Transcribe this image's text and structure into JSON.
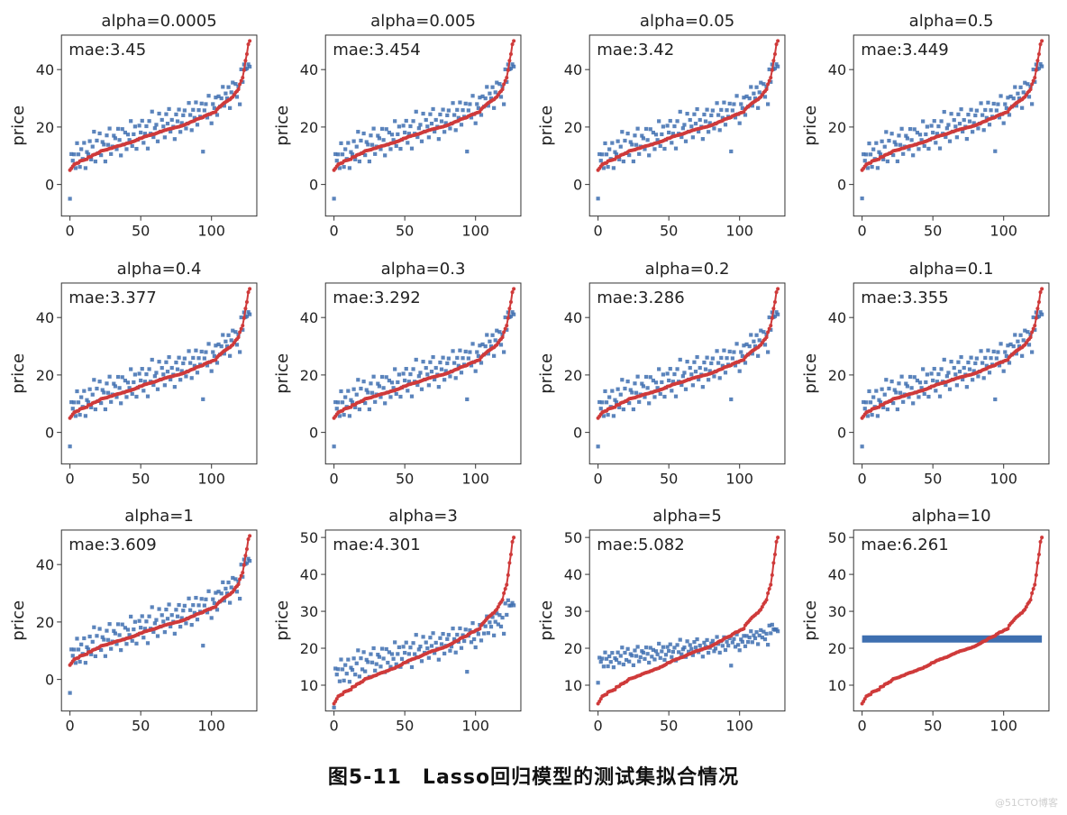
{
  "caption": "图5-11　Lasso回归模型的测试集拟合情况",
  "watermark": "@51CTO博客",
  "layout": {
    "rows": 3,
    "cols": 4,
    "background_color": "#ffffff",
    "spine_color": "#333333",
    "tick_color": "#333333",
    "tick_fontsize": 16,
    "title_fontsize": 18,
    "label_fontsize": 18,
    "annotation_fontsize": 18,
    "scatter_color": "#3e6fb0",
    "scatter_alpha": 0.85,
    "scatter_size": 4.2,
    "line_color": "#cf3a3a",
    "line_width": 2.0,
    "line_marker_size": 2.0,
    "xlim": [
      -6,
      132
    ],
    "xticks": [
      0,
      50,
      100
    ],
    "y_default_lim": [
      -11,
      52
    ],
    "y_default_ticks": [
      0,
      20,
      40
    ],
    "y_alt_lim": [
      3,
      52
    ],
    "y_alt_ticks": [
      10,
      20,
      30,
      40,
      50
    ]
  },
  "sorted_truth": [
    5.0,
    5.6,
    6.3,
    7.0,
    7.2,
    7.4,
    7.5,
    8.1,
    8.3,
    8.4,
    8.5,
    8.7,
    8.8,
    9.5,
    9.6,
    9.7,
    10.2,
    10.4,
    10.5,
    10.8,
    10.9,
    11.3,
    11.7,
    11.8,
    11.9,
    12.0,
    12.1,
    12.3,
    12.5,
    12.6,
    12.7,
    13.0,
    13.1,
    13.3,
    13.4,
    13.5,
    13.6,
    13.8,
    13.9,
    14.1,
    14.3,
    14.4,
    14.5,
    14.6,
    14.9,
    15.0,
    15.2,
    15.4,
    15.6,
    16.0,
    16.1,
    16.2,
    16.5,
    16.7,
    16.8,
    17.0,
    17.1,
    17.2,
    17.4,
    17.5,
    17.6,
    17.8,
    18.0,
    18.2,
    18.4,
    18.5,
    18.7,
    18.9,
    19.0,
    19.2,
    19.3,
    19.4,
    19.5,
    19.6,
    19.8,
    19.9,
    20.0,
    20.1,
    20.3,
    20.4,
    20.6,
    20.8,
    21.0,
    21.2,
    21.4,
    21.7,
    21.9,
    22.0,
    22.2,
    22.6,
    22.8,
    22.9,
    23.1,
    23.2,
    23.4,
    23.8,
    24.0,
    24.3,
    24.4,
    24.5,
    24.8,
    25.0,
    25.1,
    25.3,
    26.2,
    26.7,
    27.1,
    27.5,
    28.0,
    28.4,
    28.7,
    29.0,
    29.4,
    29.6,
    30.1,
    30.5,
    31.2,
    32.0,
    32.5,
    33.1,
    34.9,
    36.1,
    37.2,
    39.8,
    43.1,
    45.4,
    48.8,
    50.0
  ],
  "residuals": [
    -10.0,
    5.0,
    2.0,
    3.5,
    -1.5,
    7.0,
    3.0,
    -2.0,
    4.0,
    0.5,
    6.0,
    -3.0,
    2.5,
    1.0,
    5.5,
    -1.0,
    3.0,
    8.0,
    -2.5,
    4.5,
    0.0,
    6.5,
    -1.5,
    3.0,
    2.0,
    -4.0,
    5.0,
    1.5,
    7.0,
    -2.0,
    0.5,
    4.0,
    3.0,
    -1.0,
    6.0,
    2.0,
    -3.5,
    5.5,
    0.0,
    4.0,
    -2.0,
    3.0,
    1.0,
    7.5,
    -1.5,
    2.5,
    5.0,
    -3.0,
    0.0,
    4.5,
    2.0,
    6.0,
    -2.0,
    1.0,
    3.5,
    -4.5,
    5.0,
    0.5,
    8.0,
    -1.0,
    2.0,
    3.0,
    -3.0,
    6.5,
    0.0,
    4.0,
    1.5,
    -2.5,
    5.5,
    2.0,
    7.0,
    -1.0,
    3.0,
    0.5,
    -4.0,
    4.5,
    2.0,
    6.0,
    -2.0,
    1.0,
    3.5,
    5.0,
    -1.5,
    0.0,
    7.0,
    2.5,
    -3.0,
    4.0,
    1.0,
    6.0,
    -2.0,
    3.0,
    0.5,
    5.0,
    -12.0,
    2.0,
    4.0,
    -1.0,
    6.5,
    0.0,
    -3.5,
    3.0,
    1.5,
    5.0,
    -2.0,
    4.0,
    0.0,
    2.5,
    6.0,
    -1.0,
    3.0,
    1.0,
    4.5,
    -3.0,
    2.0,
    5.0,
    0.0,
    3.0,
    -2.0,
    1.0,
    -7.0,
    4.0,
    -1.5,
    2.0,
    -3.0,
    -5.0,
    -7.0,
    -9.0
  ],
  "subplots": [
    {
      "title": "alpha=0.0005",
      "mae": "mae:3.45",
      "pred_mode": "truth",
      "shrink": 0.01,
      "y_alt": false
    },
    {
      "title": "alpha=0.005",
      "mae": "mae:3.454",
      "pred_mode": "truth",
      "shrink": 0.02,
      "y_alt": false
    },
    {
      "title": "alpha=0.05",
      "mae": "mae:3.42",
      "pred_mode": "truth",
      "shrink": 0.03,
      "y_alt": false
    },
    {
      "title": "alpha=0.5",
      "mae": "mae:3.449",
      "pred_mode": "truth",
      "shrink": 0.05,
      "y_alt": false
    },
    {
      "title": "alpha=0.4",
      "mae": "mae:3.377",
      "pred_mode": "truth",
      "shrink": 0.04,
      "y_alt": false
    },
    {
      "title": "alpha=0.3",
      "mae": "mae:3.292",
      "pred_mode": "truth",
      "shrink": 0.035,
      "y_alt": false
    },
    {
      "title": "alpha=0.2",
      "mae": "mae:3.286",
      "pred_mode": "truth",
      "shrink": 0.03,
      "y_alt": false
    },
    {
      "title": "alpha=0.1",
      "mae": "mae:3.355",
      "pred_mode": "truth",
      "shrink": 0.03,
      "y_alt": false
    },
    {
      "title": "alpha=1",
      "mae": "mae:3.609",
      "pred_mode": "truth",
      "shrink": 0.1,
      "y_alt": false
    },
    {
      "title": "alpha=3",
      "mae": "mae:4.301",
      "pred_mode": "shrink",
      "shrink": 0.4,
      "y_alt": true
    },
    {
      "title": "alpha=5",
      "mae": "mae:5.082",
      "pred_mode": "shrink",
      "shrink": 0.7,
      "y_alt": true
    },
    {
      "title": "alpha=10",
      "mae": "mae:6.261",
      "pred_mode": "flat",
      "flat_value": 22.5,
      "y_alt": true
    }
  ]
}
